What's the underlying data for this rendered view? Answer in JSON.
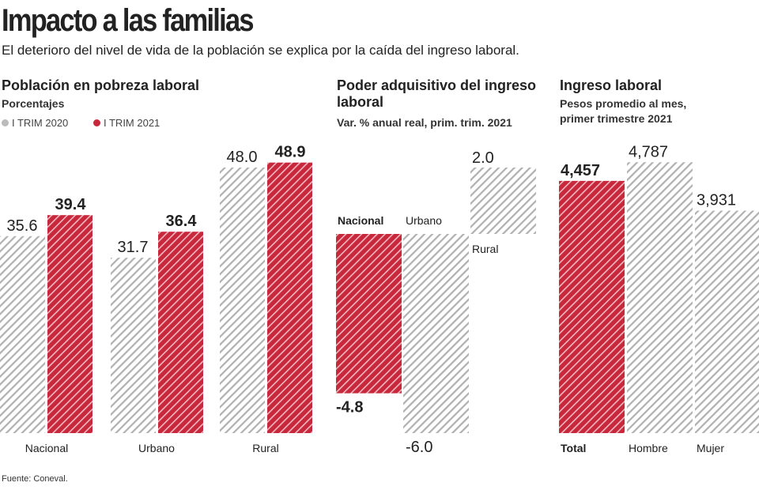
{
  "title": "Impacto a las familias",
  "subtitle": "El deterioro del nivel de vida de la población se explica por la caída del ingreso laboral.",
  "source": "Fuente: Coneval.",
  "colors": {
    "red": "#c8283c",
    "gray": "#b0b0b0"
  },
  "chart_data": [
    {
      "type": "bar",
      "title": "Población en pobreza laboral",
      "subtitle": "Porcentajes",
      "categories": [
        "Nacional",
        "Urbano",
        "Rural"
      ],
      "series": [
        {
          "name": "I TRIM 2020",
          "values": [
            35.6,
            31.7,
            48.0
          ],
          "labels": [
            "35.6",
            "31.7",
            "48.0"
          ]
        },
        {
          "name": "I TRIM 2021",
          "values": [
            39.4,
            36.4,
            48.9
          ],
          "labels": [
            "39.4",
            "36.4",
            "48.9"
          ]
        }
      ],
      "legend": "top-left"
    },
    {
      "type": "bar",
      "title": "Poder adquisitivo del ingreso laboral",
      "subtitle": "Var. % anual real, prim. trim. 2021",
      "categories": [
        "Nacional",
        "Urbano",
        "Rural"
      ],
      "values": [
        -4.8,
        -6.0,
        2.0
      ],
      "labels": [
        "-4.8",
        "-6.0",
        "2.0"
      ]
    },
    {
      "type": "bar",
      "title": "Ingreso laboral",
      "subtitle": "Pesos promedio al mes, primer trimestre 2021",
      "categories": [
        "Total",
        "Hombre",
        "Mujer"
      ],
      "values": [
        4457,
        4787,
        3931
      ],
      "labels": [
        "4,457",
        "4,787",
        "3,931"
      ]
    }
  ]
}
